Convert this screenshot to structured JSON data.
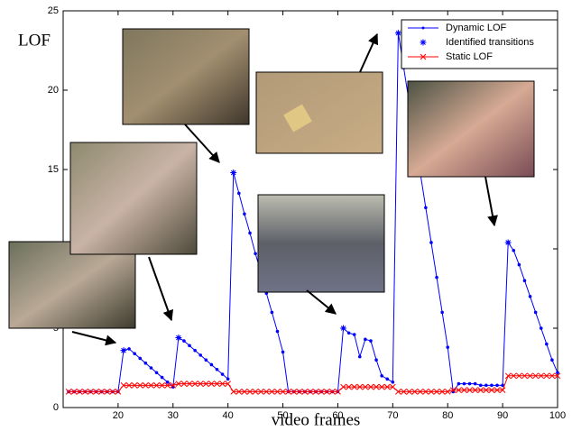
{
  "chart_data": {
    "type": "line",
    "xlabel": "video frames",
    "ylabel": "LOF",
    "xlim": [
      10,
      100
    ],
    "ylim": [
      0,
      25
    ],
    "xticks": [
      20,
      30,
      40,
      50,
      60,
      70,
      80,
      90,
      100
    ],
    "yticks": [
      0,
      5,
      10,
      15,
      20,
      25
    ],
    "legend": "upper right",
    "series": [
      {
        "name": "Dynamic LOF",
        "color": "#0000ff",
        "marker": "dot",
        "line": true,
        "x": [
          11,
          12,
          13,
          14,
          15,
          16,
          17,
          18,
          19,
          20,
          21,
          22,
          23,
          24,
          25,
          26,
          27,
          28,
          29,
          30,
          31,
          32,
          33,
          34,
          35,
          36,
          37,
          38,
          39,
          40,
          41,
          42,
          43,
          44,
          45,
          46,
          47,
          48,
          49,
          50,
          51,
          52,
          53,
          54,
          55,
          56,
          57,
          58,
          59,
          60,
          61,
          62,
          63,
          64,
          65,
          66,
          67,
          68,
          69,
          70,
          71,
          72,
          73,
          74,
          75,
          76,
          77,
          78,
          79,
          80,
          81,
          82,
          83,
          84,
          85,
          86,
          87,
          88,
          89,
          90,
          91,
          92,
          93,
          94,
          95,
          96,
          97,
          98,
          99,
          100
        ],
        "values": [
          1.0,
          1.0,
          1.0,
          1.0,
          1.0,
          1.0,
          1.0,
          1.0,
          1.0,
          1.0,
          3.6,
          3.7,
          3.4,
          3.1,
          2.8,
          2.5,
          2.2,
          1.9,
          1.6,
          1.3,
          4.4,
          4.2,
          3.9,
          3.6,
          3.3,
          3.0,
          2.7,
          2.4,
          2.1,
          1.8,
          14.8,
          13.5,
          12.2,
          11.0,
          9.7,
          8.5,
          7.2,
          6.0,
          4.8,
          3.5,
          1.0,
          1.0,
          1.0,
          1.0,
          1.0,
          1.0,
          1.0,
          1.0,
          1.0,
          1.0,
          5.0,
          4.7,
          4.6,
          3.2,
          4.3,
          4.2,
          3.0,
          2.0,
          1.8,
          1.6,
          23.6,
          21.4,
          19.2,
          17.0,
          14.8,
          12.6,
          10.4,
          8.2,
          6.0,
          3.8,
          1.0,
          1.5,
          1.5,
          1.5,
          1.5,
          1.4,
          1.4,
          1.4,
          1.4,
          1.4,
          10.4,
          9.9,
          9.0,
          8.0,
          7.0,
          6.0,
          5.0,
          4.0,
          3.0,
          2.2
        ]
      },
      {
        "name": "Identified transitions",
        "color": "#0000ff",
        "marker": "star",
        "line": false,
        "x": [
          21,
          31,
          41,
          61,
          71,
          91
        ],
        "values": [
          3.6,
          4.4,
          14.8,
          5.0,
          23.6,
          10.4
        ]
      },
      {
        "name": "Static LOF",
        "color": "#ff0000",
        "marker": "cross",
        "line": true,
        "x": [
          11,
          12,
          13,
          14,
          15,
          16,
          17,
          18,
          19,
          20,
          21,
          22,
          23,
          24,
          25,
          26,
          27,
          28,
          29,
          30,
          31,
          32,
          33,
          34,
          35,
          36,
          37,
          38,
          39,
          40,
          41,
          42,
          43,
          44,
          45,
          46,
          47,
          48,
          49,
          50,
          51,
          52,
          53,
          54,
          55,
          56,
          57,
          58,
          59,
          60,
          61,
          62,
          63,
          64,
          65,
          66,
          67,
          68,
          69,
          70,
          71,
          72,
          73,
          74,
          75,
          76,
          77,
          78,
          79,
          80,
          81,
          82,
          83,
          84,
          85,
          86,
          87,
          88,
          89,
          90,
          91,
          92,
          93,
          94,
          95,
          96,
          97,
          98,
          99,
          100
        ],
        "values": [
          1.0,
          1.0,
          1.0,
          1.0,
          1.0,
          1.0,
          1.0,
          1.0,
          1.0,
          1.0,
          1.4,
          1.4,
          1.4,
          1.4,
          1.4,
          1.4,
          1.4,
          1.4,
          1.4,
          1.4,
          1.5,
          1.5,
          1.5,
          1.5,
          1.5,
          1.5,
          1.5,
          1.5,
          1.5,
          1.5,
          1.0,
          1.0,
          1.0,
          1.0,
          1.0,
          1.0,
          1.0,
          1.0,
          1.0,
          1.0,
          1.0,
          1.0,
          1.0,
          1.0,
          1.0,
          1.0,
          1.0,
          1.0,
          1.0,
          1.0,
          1.3,
          1.3,
          1.3,
          1.3,
          1.3,
          1.3,
          1.3,
          1.3,
          1.3,
          1.3,
          1.0,
          1.0,
          1.0,
          1.0,
          1.0,
          1.0,
          1.0,
          1.0,
          1.0,
          1.0,
          1.1,
          1.1,
          1.1,
          1.1,
          1.1,
          1.1,
          1.1,
          1.1,
          1.1,
          1.1,
          2.0,
          2.0,
          2.0,
          2.0,
          2.0,
          2.0,
          2.0,
          2.0,
          2.0,
          2.0
        ]
      }
    ]
  }
}
